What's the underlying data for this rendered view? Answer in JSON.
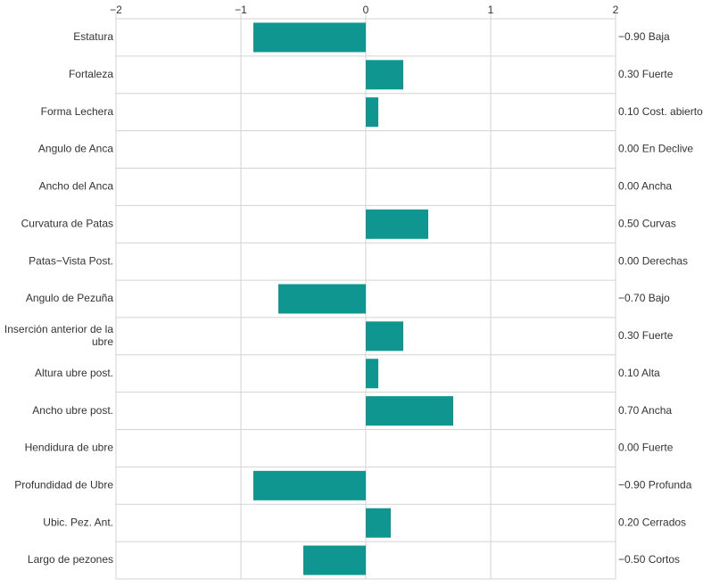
{
  "colors": {
    "bar": "#0f9690",
    "grid": "#d3d3d3",
    "text": "#333333"
  },
  "chart_data": {
    "type": "bar",
    "orientation": "horizontal",
    "title": "",
    "xlabel": "",
    "ylabel": "",
    "xlim": [
      -2,
      2
    ],
    "x_ticks": [
      "−2",
      "−1",
      "0",
      "1",
      "2"
    ],
    "x_tick_values": [
      -2,
      -1,
      0,
      1,
      2
    ],
    "grid": true,
    "categories": [
      "Estatura",
      "Fortaleza",
      "Forma Lechera",
      "Angulo de Anca",
      "Ancho del Anca",
      "Curvatura de Patas",
      "Patas−Vista Post.",
      "Angulo de Pezuña",
      "Inserción anterior de la ubre",
      "Altura ubre post.",
      "Ancho ubre post.",
      "Hendidura de ubre",
      "Profundidad de Ubre",
      "Ubic. Pez. Ant.",
      "Largo de pezones"
    ],
    "category_lines": [
      [
        "Estatura"
      ],
      [
        "Fortaleza"
      ],
      [
        "Forma Lechera"
      ],
      [
        "Angulo de Anca"
      ],
      [
        "Ancho del Anca"
      ],
      [
        "Curvatura de Patas"
      ],
      [
        "Patas−Vista Post."
      ],
      [
        "Angulo de Pezuña"
      ],
      [
        "Inserción anterior de la",
        "ubre"
      ],
      [
        "Altura ubre post."
      ],
      [
        "Ancho ubre post."
      ],
      [
        "Hendidura de ubre"
      ],
      [
        "Profundidad de Ubre"
      ],
      [
        "Ubic. Pez. Ant."
      ],
      [
        "Largo de pezones"
      ]
    ],
    "values": [
      -0.9,
      0.3,
      0.1,
      0.0,
      0.0,
      0.5,
      0.0,
      -0.7,
      0.3,
      0.1,
      0.7,
      0.0,
      -0.9,
      0.2,
      -0.5
    ],
    "right_labels": [
      "−0.90 Baja",
      "0.30 Fuerte",
      "0.10 Cost. abierto",
      "0.00 En Declive",
      "0.00 Ancha",
      "0.50 Curvas",
      "0.00 Derechas",
      "−0.70 Bajo",
      "0.30 Fuerte",
      "0.10 Alta",
      "0.70 Ancha",
      "0.00 Fuerte",
      "−0.90 Profunda",
      "0.20 Cerrados",
      "−0.50 Cortos"
    ]
  }
}
